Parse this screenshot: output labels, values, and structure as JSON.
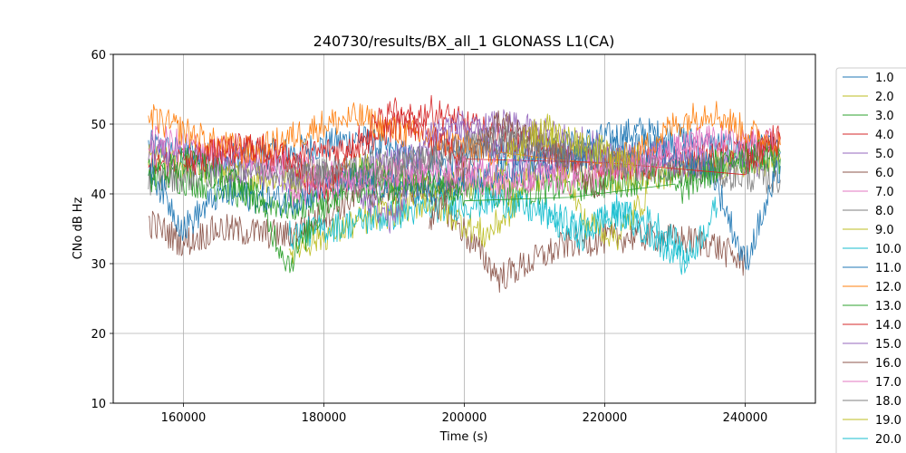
{
  "chart_data": {
    "type": "line",
    "title": "240730/results/BX_all_1 GLONASS L1(CA)",
    "xlabel": "Time (s)",
    "ylabel": "CNo dB Hz",
    "xlim": [
      150000,
      250000
    ],
    "ylim": [
      10,
      60
    ],
    "xticks": [
      160000,
      180000,
      200000,
      220000,
      240000
    ],
    "yticks": [
      10,
      20,
      30,
      40,
      50,
      60
    ],
    "grid": true,
    "legend_position": "right, outside plot",
    "series": [
      {
        "name": "1.0",
        "color": "#1f77b4",
        "x": [
          155000,
          165000,
          175000,
          185000,
          195000,
          205000,
          215000,
          225000,
          235000,
          245000
        ],
        "y": [
          47,
          45,
          46,
          48,
          44,
          46,
          47,
          49,
          47,
          46
        ]
      },
      {
        "name": "2.0",
        "color": "#bcbd22",
        "x": [
          155000,
          165000,
          175000,
          185000,
          195000,
          205000,
          215000,
          225000,
          235000,
          245000
        ],
        "y": [
          45,
          43,
          42,
          44,
          41,
          42,
          43,
          42,
          44,
          45
        ]
      },
      {
        "name": "3.0",
        "color": "#2ca02c",
        "x": [
          155000,
          165000,
          175000,
          185000,
          195000,
          205000,
          215000,
          225000,
          235000,
          245000
        ],
        "y": [
          43,
          41,
          38,
          40,
          42,
          40,
          41,
          42,
          44,
          46
        ]
      },
      {
        "name": "4.0",
        "color": "#d62728",
        "x": [
          155000,
          165000,
          175000,
          185000,
          195000,
          205000,
          215000,
          225000,
          235000,
          245000
        ],
        "y": [
          44,
          46,
          45,
          47,
          52,
          48,
          45,
          44,
          45,
          48
        ]
      },
      {
        "name": "5.0",
        "color": "#9467bd",
        "x": [
          155000,
          165000,
          175000,
          185000,
          195000,
          205000,
          215000,
          225000,
          235000,
          245000
        ],
        "y": [
          46,
          44,
          42,
          43,
          47,
          50,
          48,
          45,
          44,
          45
        ]
      },
      {
        "name": "6.0",
        "color": "#8c564b",
        "x": [
          155000,
          160000,
          165000,
          175000,
          185000,
          195000,
          205000,
          215000,
          225000,
          235000,
          240000
        ],
        "y": [
          36,
          33,
          35,
          34,
          40,
          41,
          28,
          33,
          34,
          33,
          30
        ]
      },
      {
        "name": "7.0",
        "color": "#e377c2",
        "x": [
          155000,
          165000,
          175000,
          185000,
          195000,
          205000,
          215000,
          225000,
          235000,
          245000
        ],
        "y": [
          48,
          46,
          44,
          42,
          43,
          41,
          44,
          45,
          48,
          47
        ]
      },
      {
        "name": "8.0",
        "color": "#7f7f7f",
        "x": [
          155000,
          165000,
          175000,
          185000,
          195000,
          205000,
          215000,
          225000,
          235000,
          245000
        ],
        "y": [
          42,
          43,
          44,
          42,
          45,
          48,
          46,
          44,
          43,
          42
        ]
      },
      {
        "name": "9.0",
        "color": "#bcbd22",
        "x": [
          175000,
          180000,
          185000,
          195000,
          203000,
          207000,
          212000,
          217000,
          222000,
          226000
        ],
        "y": [
          32,
          34,
          36,
          39,
          34,
          38,
          50,
          36,
          34,
          40
        ]
      },
      {
        "name": "10.0",
        "color": "#17becf",
        "x": [
          175000,
          185000,
          195000,
          205000,
          212000,
          217000,
          222000,
          227000,
          232000,
          236000
        ],
        "y": [
          34,
          36,
          38,
          39,
          37,
          35,
          37,
          36,
          31,
          38
        ]
      },
      {
        "name": "11.0",
        "color": "#1f77b4",
        "x": [
          155000,
          160000,
          165000,
          175000,
          185000,
          195000,
          205000,
          215000,
          225000,
          235000,
          240000,
          245000
        ],
        "y": [
          44,
          35,
          40,
          39,
          42,
          40,
          43,
          45,
          47,
          44,
          30,
          44
        ]
      },
      {
        "name": "12.0",
        "color": "#ff7f0e",
        "x": [
          155000,
          160000,
          165000,
          170000,
          175000,
          180000,
          185000,
          190000,
          195000,
          200000,
          205000,
          220000,
          225000,
          230000,
          235000,
          240000,
          245000
        ],
        "y": [
          51,
          49,
          47,
          46,
          48,
          50,
          51,
          49,
          48,
          47,
          46,
          44,
          46,
          50,
          52,
          49,
          47
        ]
      },
      {
        "name": "13.0",
        "color": "#2ca02c",
        "x": [
          155000,
          160000,
          165000,
          170000,
          175000,
          180000,
          185000,
          190000,
          195000,
          200000,
          230000,
          235000,
          240000,
          245000
        ],
        "y": [
          42,
          45,
          43,
          40,
          30,
          38,
          44,
          41,
          42,
          39,
          40,
          43,
          46,
          45
        ]
      },
      {
        "name": "14.0",
        "color": "#d62728",
        "x": [
          160000,
          165000,
          170000,
          175000,
          180000,
          185000,
          190000,
          195000,
          200000,
          240000,
          245000
        ],
        "y": [
          44,
          46,
          47,
          45,
          40,
          48,
          52,
          48,
          45,
          44,
          48
        ]
      },
      {
        "name": "15.0",
        "color": "#9467bd",
        "x": [
          185000,
          190000,
          195000,
          200000,
          205000,
          210000,
          215000
        ],
        "y": [
          40,
          36,
          49,
          50,
          46,
          44,
          45
        ]
      },
      {
        "name": "16.0",
        "color": "#8c564b",
        "x": [
          195000,
          200000,
          205000,
          210000,
          215000,
          220000
        ],
        "y": [
          36,
          44,
          50,
          48,
          44,
          40
        ]
      },
      {
        "name": "17.0",
        "color": "#e377c2",
        "x": [
          175000,
          185000,
          195000,
          205000,
          215000,
          225000,
          235000
        ],
        "y": [
          40,
          42,
          44,
          43,
          42,
          44,
          48
        ]
      },
      {
        "name": "18.0",
        "color": "#7f7f7f",
        "x": [
          175000,
          185000,
          195000,
          205000,
          215000,
          225000
        ],
        "y": [
          42,
          44,
          45,
          48,
          46,
          44
        ]
      },
      {
        "name": "19.0",
        "color": "#bcbd22",
        "x": [
          205000,
          210000,
          215000,
          220000,
          225000
        ],
        "y": [
          44,
          49,
          48,
          46,
          45
        ]
      },
      {
        "name": "20.0",
        "color": "#17becf",
        "x": [
          212000,
          217000,
          222000,
          227000,
          232000
        ],
        "y": [
          36,
          34,
          38,
          33,
          30
        ]
      }
    ]
  }
}
